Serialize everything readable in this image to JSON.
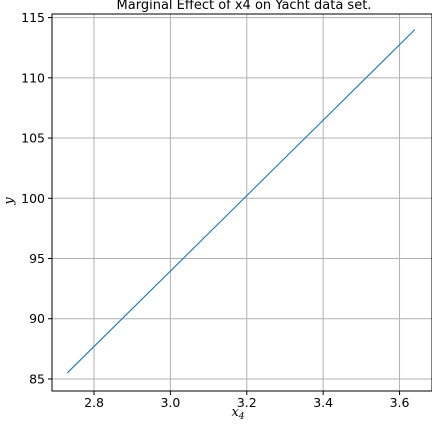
{
  "chart_data": {
    "type": "line",
    "title": "Marginal Effect of x4 on Yacht data set.",
    "xlabel": "x",
    "xlabel_sub": "4",
    "ylabel": "y",
    "xlim": [
      2.69,
      3.685
    ],
    "ylim": [
      84.0,
      115.3
    ],
    "xticks": [
      2.8,
      3.0,
      3.2,
      3.4,
      3.6
    ],
    "xtick_labels": [
      "2.8",
      "3.0",
      "3.2",
      "3.4",
      "3.6"
    ],
    "yticks": [
      85,
      90,
      95,
      100,
      105,
      110,
      115
    ],
    "ytick_labels": [
      "85",
      "90",
      "95",
      "100",
      "105",
      "110",
      "115"
    ],
    "grid": true,
    "series": [
      {
        "x": [
          2.73,
          3.64
        ],
        "y": [
          85.5,
          114.0
        ],
        "color": "#1f77b4"
      }
    ]
  }
}
